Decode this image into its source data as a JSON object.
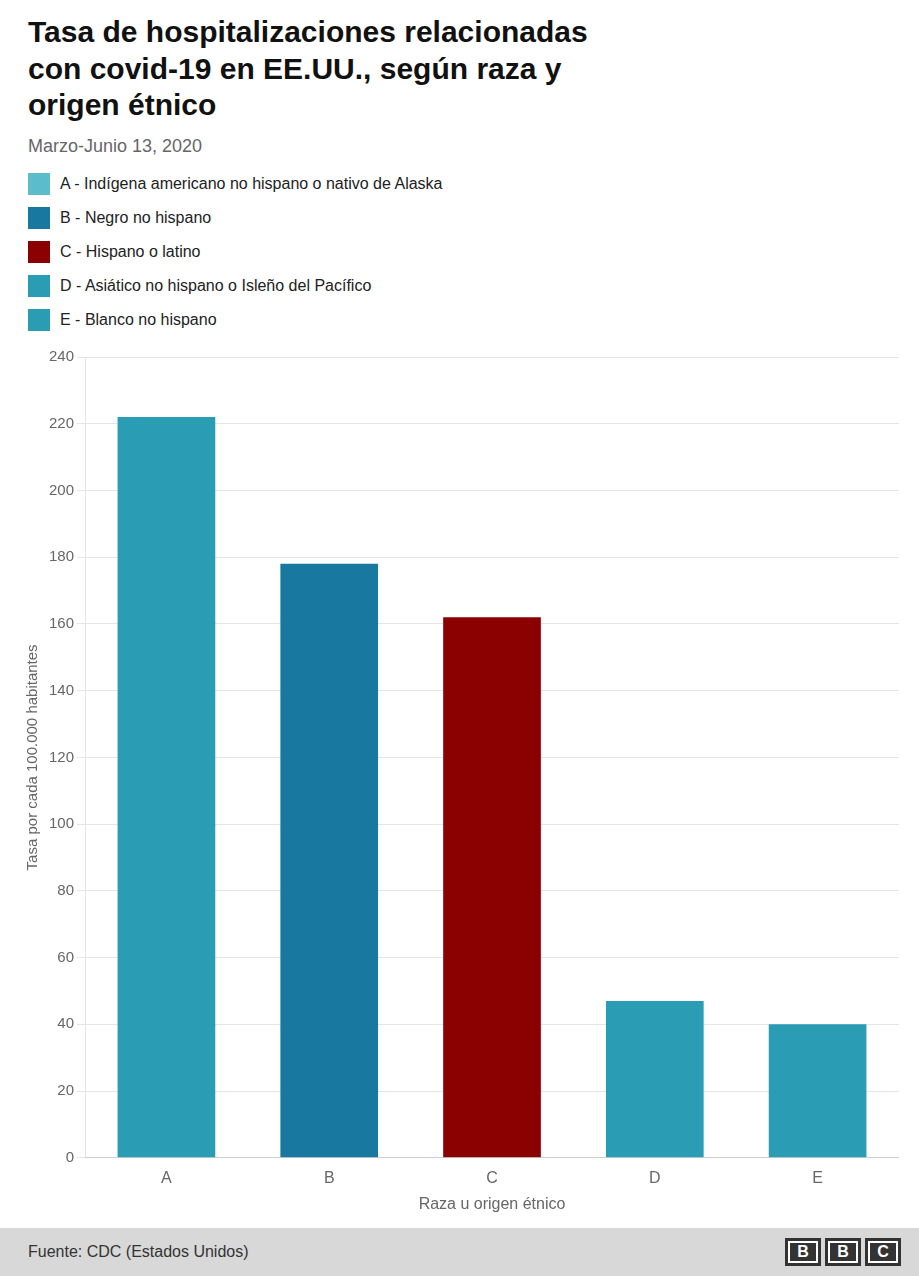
{
  "chart_data": {
    "type": "bar",
    "title": "Tasa de hospitalizaciones relacionadas\ncon covid-19 en EE.UU., según raza y\norigen étnico",
    "subtitle": "Marzo-Junio 13, 2020",
    "categories": [
      "A",
      "B",
      "C",
      "D",
      "E"
    ],
    "values": [
      222,
      178,
      162,
      47,
      40
    ],
    "colors": [
      "#2A9DB5",
      "#1878A0",
      "#8B0000",
      "#2A9DB5",
      "#2A9DB5"
    ],
    "xlabel": "Raza u origen étnico",
    "ylabel": "Tasa por cada 100.000 habitantes",
    "ylim": [
      0,
      240
    ],
    "yticks": [
      0,
      20,
      40,
      60,
      80,
      100,
      120,
      140,
      160,
      180,
      200,
      220,
      240
    ],
    "grid": true,
    "annotations": [
      {
        "text": "A - Indígena americano no hispano o nativo de Alaska",
        "color": "#5BBCCC"
      },
      {
        "text": "B - Negro no hispano",
        "color": "#1878A0"
      },
      {
        "text": "C - Hispano o latino",
        "color": "#8B0000"
      },
      {
        "text": "D - Asiático no hispano o Isleño del Pacífico",
        "color": "#2A9DB5"
      },
      {
        "text": "E - Blanco no hispano",
        "color": "#2A9DB5"
      },
      {
        "text": "Fuente: CDC (Estados Unidos)"
      },
      {
        "text": "BBC"
      }
    ]
  }
}
